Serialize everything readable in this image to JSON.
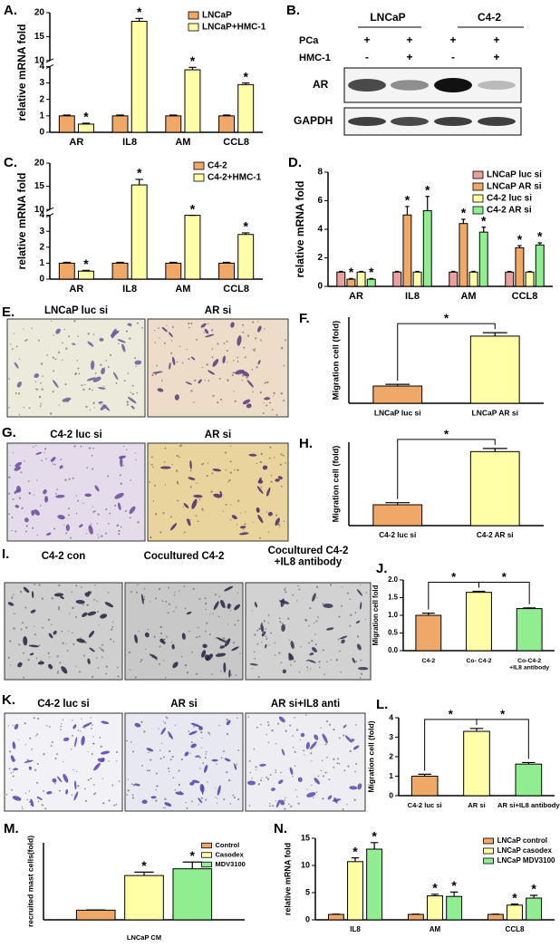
{
  "blot": {
    "panel": "B.",
    "groups": [
      "LNCaP",
      "C4-2"
    ],
    "rows": [
      {
        "label": "PCa",
        "signs": [
          "+",
          "+",
          "+",
          "+"
        ]
      },
      {
        "label": "HMC-1",
        "signs": [
          "-",
          "+",
          "-",
          "+"
        ]
      }
    ],
    "bands": [
      "AR",
      "GAPDH"
    ]
  },
  "micrographs": [
    {
      "panel": "E.",
      "captions": [
        "LNCaP luc si",
        "AR si"
      ]
    },
    {
      "panel": "G.",
      "captions": [
        "C4-2 luc si",
        "AR si"
      ]
    },
    {
      "panel": "I.",
      "captions": [
        "C4-2 con",
        "Cocultured C4-2",
        "Cocultured C4-2\n+IL8 antibody"
      ]
    },
    {
      "panel": "K.",
      "captions": [
        "C4-2 luc si",
        "AR si",
        "AR si+IL8 anti"
      ]
    }
  ],
  "chart_data": [
    {
      "panel": "A.",
      "type": "bar",
      "ylabel": "relative mRNA fold",
      "categories": [
        "AR",
        "IL8",
        "AM",
        "CCL8"
      ],
      "series": [
        {
          "name": "LNCaP",
          "color": "#f0a868",
          "values": [
            1,
            1,
            1,
            1
          ],
          "errors": [
            0.05,
            0.05,
            0.05,
            0.05
          ]
        },
        {
          "name": "LNCaP+HMC-1",
          "color": "#ffffa8",
          "values": [
            0.5,
            18.2,
            3.8,
            2.9
          ],
          "errors": [
            0.05,
            0.6,
            0.15,
            0.1
          ],
          "labels": [
            "*",
            "*",
            "*",
            "*"
          ]
        }
      ],
      "ylim": [
        0,
        20
      ],
      "ybreak": [
        4,
        10
      ],
      "yticks": [
        0,
        1,
        2,
        3,
        4,
        10,
        15,
        20
      ],
      "legend": "upper right"
    },
    {
      "panel": "C.",
      "type": "bar",
      "ylabel": "relative mRNA fold",
      "categories": [
        "AR",
        "IL8",
        "AM",
        "CCL8"
      ],
      "series": [
        {
          "name": "C4-2",
          "color": "#f0a868",
          "values": [
            1,
            1,
            1,
            1
          ],
          "errors": [
            0.05,
            0.05,
            0.05,
            0.05
          ]
        },
        {
          "name": "C4-2+HMC-1",
          "color": "#ffffa8",
          "values": [
            0.5,
            15.3,
            4,
            2.8
          ],
          "errors": [
            0.05,
            1.2,
            0.1,
            0.1
          ],
          "labels": [
            "*",
            "*",
            "*",
            "*"
          ]
        }
      ],
      "ylim": [
        0,
        20
      ],
      "ybreak": [
        4,
        10
      ],
      "yticks": [
        0,
        1,
        2,
        3,
        4,
        10,
        15,
        20
      ],
      "legend": "upper right"
    },
    {
      "panel": "D.",
      "type": "bar",
      "ylabel": "relative mRNA fold",
      "categories": [
        "AR",
        "IL8",
        "AM",
        "CCL8"
      ],
      "series": [
        {
          "name": "LNCaP luc si",
          "color": "#eba0a0",
          "values": [
            1,
            1,
            1,
            1
          ],
          "errors": [
            0.05,
            0.05,
            0.05,
            0.05
          ]
        },
        {
          "name": "LNCaP AR si",
          "color": "#f0a868",
          "values": [
            0.5,
            5,
            4.4,
            2.7
          ],
          "errors": [
            0.05,
            0.6,
            0.3,
            0.15
          ],
          "labels": [
            "*",
            "*",
            "*",
            "*"
          ]
        },
        {
          "name": "C4-2 luc si",
          "color": "#ffffa8",
          "values": [
            1,
            1,
            1,
            1
          ],
          "errors": [
            0.05,
            0.05,
            0.05,
            0.05
          ]
        },
        {
          "name": "C4-2 AR si",
          "color": "#90ee90",
          "values": [
            0.5,
            5.3,
            3.8,
            2.9
          ],
          "errors": [
            0.05,
            1,
            0.35,
            0.15
          ],
          "labels": [
            "*",
            "*",
            "*",
            "*"
          ]
        }
      ],
      "ylim": [
        0,
        8
      ],
      "yticks": [
        0,
        2,
        4,
        6,
        8
      ],
      "legend": "upper right"
    },
    {
      "panel": "F.",
      "type": "bar",
      "ylabel": "Migration cell (fold)",
      "categories": [
        "LNCaP luc si",
        "LNCaP AR si"
      ],
      "values": [
        1,
        3.9
      ],
      "errors": [
        0.1,
        0.2
      ],
      "colors": [
        "#f0a868",
        "#ffffa8"
      ],
      "ylim": [
        0,
        5
      ],
      "brackets": [
        {
          "between": [
            0,
            1
          ],
          "label": "*"
        }
      ]
    },
    {
      "panel": "H.",
      "type": "bar",
      "ylabel": "Migration cell (fold)",
      "categories": [
        "C4-2 luc si",
        "C4-2 AR si"
      ],
      "values": [
        1,
        3.55
      ],
      "errors": [
        0.1,
        0.15
      ],
      "colors": [
        "#f0a868",
        "#ffffa8"
      ],
      "ylim": [
        0,
        4
      ],
      "brackets": [
        {
          "between": [
            0,
            1
          ],
          "label": "*"
        }
      ]
    },
    {
      "panel": "J.",
      "type": "bar",
      "ylabel": "Migration cell fold",
      "categories": [
        "C4-2",
        "Co- C4-2",
        "Co-C4-2\n+IL8 antibody"
      ],
      "values": [
        1,
        1.65,
        1.19
      ],
      "errors": [
        0.06,
        0.03,
        0.02
      ],
      "colors": [
        "#f0a868",
        "#ffffa8",
        "#90ee90"
      ],
      "ylim": [
        0,
        2
      ],
      "yticks": [
        {
          "value": 0,
          "label": "0.0"
        },
        {
          "value": 0.5,
          "label": "0.5"
        },
        {
          "value": 1,
          "label": "1.0"
        },
        {
          "value": 1.5,
          "label": "1.5"
        },
        {
          "value": 2,
          "label": "2.0"
        }
      ],
      "brackets": [
        {
          "between": [
            0,
            1
          ],
          "label": "*"
        },
        {
          "between": [
            1,
            2
          ],
          "label": "*"
        }
      ]
    },
    {
      "panel": "L.",
      "type": "bar",
      "ylabel": "Migration cell (fold)",
      "categories": [
        "C4-2 luc si",
        "AR si",
        "AR si+IL8 antibody"
      ],
      "values": [
        1,
        3.3,
        1.62
      ],
      "errors": [
        0.1,
        0.15,
        0.08
      ],
      "colors": [
        "#f0a868",
        "#ffffa8",
        "#90ee90"
      ],
      "ylim": [
        0,
        4
      ],
      "yticks": [
        0,
        1,
        2,
        3,
        4
      ],
      "brackets": [
        {
          "between": [
            0,
            1
          ],
          "label": "*"
        },
        {
          "between": [
            1,
            2
          ],
          "label": "*"
        }
      ]
    },
    {
      "panel": "M.",
      "type": "bar",
      "ylabel": "recruited mast cells(fold)",
      "xlabel": "LNCaP CM",
      "categories": [
        null
      ],
      "series": [
        {
          "name": "Control",
          "color": "#f0a868",
          "values": [
            1
          ],
          "errors": [
            0.03
          ]
        },
        {
          "name": "Casodex",
          "color": "#ffffa8",
          "values": [
            4.6
          ],
          "errors": [
            0.35
          ],
          "labels": [
            "*"
          ]
        },
        {
          "name": "MDV3100",
          "color": "#90ee90",
          "values": [
            5.3
          ],
          "errors": [
            0.7
          ],
          "labels": [
            "*"
          ]
        }
      ],
      "ylim": [
        0,
        8
      ],
      "legend": "upper right"
    },
    {
      "panel": "N.",
      "type": "bar",
      "ylabel": "relative mRNA fold",
      "categories": [
        "IL8",
        "AM",
        "CCL8"
      ],
      "series": [
        {
          "name": "LNCaP control",
          "color": "#f0a868",
          "values": [
            1,
            1,
            1
          ],
          "errors": [
            0.05,
            0.05,
            0.05
          ]
        },
        {
          "name": "LNCaP casodex",
          "color": "#ffffa8",
          "values": [
            10.7,
            4.4,
            2.7
          ],
          "errors": [
            0.7,
            0.3,
            0.2
          ],
          "labels": [
            "*",
            "*",
            "*"
          ]
        },
        {
          "name": "LNCaP MDV3100",
          "color": "#90ee90",
          "values": [
            13,
            4.3,
            4
          ],
          "errors": [
            1.2,
            0.8,
            0.5
          ],
          "labels": [
            "*",
            "*",
            "*"
          ]
        }
      ],
      "ylim": [
        0,
        15
      ],
      "yticks": [
        0,
        5,
        10,
        15
      ],
      "legend": "upper right"
    }
  ]
}
